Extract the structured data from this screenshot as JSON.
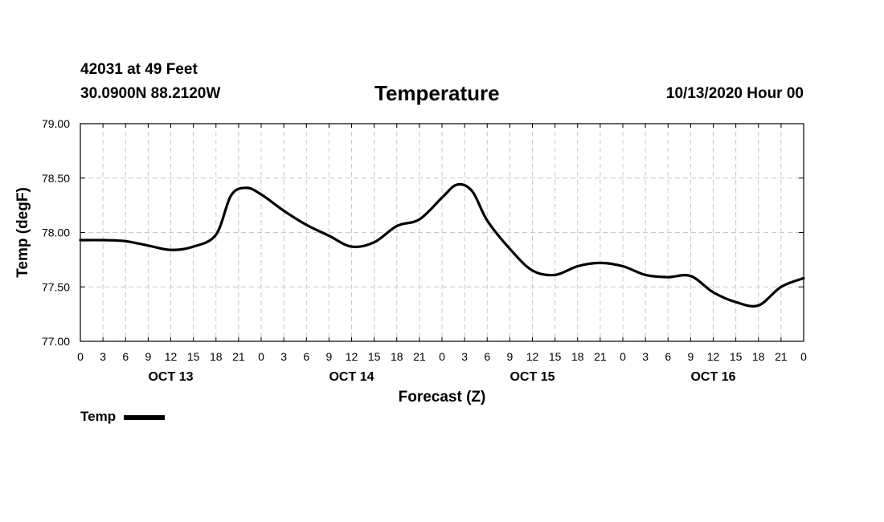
{
  "header": {
    "station": "42031 at 49 Feet",
    "coords": "30.0900N 88.2120W",
    "title": "Temperature",
    "run_time": "10/13/2020 Hour 00"
  },
  "chart_data": {
    "type": "line",
    "title": "Temperature",
    "xlabel": "Forecast (Z)",
    "ylabel": "Temp (degF)",
    "ylim": [
      77.0,
      79.0
    ],
    "yticks": [
      "77.00",
      "77.50",
      "78.00",
      "78.50",
      "79.00"
    ],
    "xlim": [
      0,
      96
    ],
    "x_tick_step_hours": 3,
    "x_tick_labels": [
      "0",
      "3",
      "6",
      "9",
      "12",
      "15",
      "18",
      "21",
      "0",
      "3",
      "6",
      "9",
      "12",
      "15",
      "18",
      "21",
      "0",
      "3",
      "6",
      "9",
      "12",
      "15",
      "18",
      "21",
      "0",
      "3",
      "6",
      "9",
      "12",
      "15",
      "18",
      "21",
      "0"
    ],
    "day_labels": [
      {
        "label": "OCT 13",
        "hour": 12
      },
      {
        "label": "OCT 14",
        "hour": 36
      },
      {
        "label": "OCT 15",
        "hour": 60
      },
      {
        "label": "OCT 16",
        "hour": 84
      }
    ],
    "grid": true,
    "legend_position": "bottom-left",
    "series": [
      {
        "name": "Temp",
        "color": "#000000",
        "x": [
          0,
          3,
          6,
          9,
          12,
          15,
          18,
          20,
          22,
          24,
          27,
          30,
          33,
          36,
          39,
          42,
          45,
          48,
          50,
          52,
          54,
          57,
          60,
          63,
          66,
          69,
          72,
          75,
          78,
          81,
          84,
          87,
          90,
          93,
          96
        ],
        "values": [
          77.93,
          77.93,
          77.92,
          77.88,
          77.84,
          77.87,
          77.98,
          78.34,
          78.41,
          78.35,
          78.2,
          78.07,
          77.97,
          77.87,
          77.91,
          78.06,
          78.12,
          78.32,
          78.44,
          78.38,
          78.11,
          77.85,
          77.65,
          77.61,
          77.69,
          77.72,
          77.69,
          77.61,
          77.59,
          77.6,
          77.45,
          77.36,
          77.33,
          77.5,
          77.58
        ]
      }
    ]
  },
  "legend": {
    "label": "Temp"
  }
}
